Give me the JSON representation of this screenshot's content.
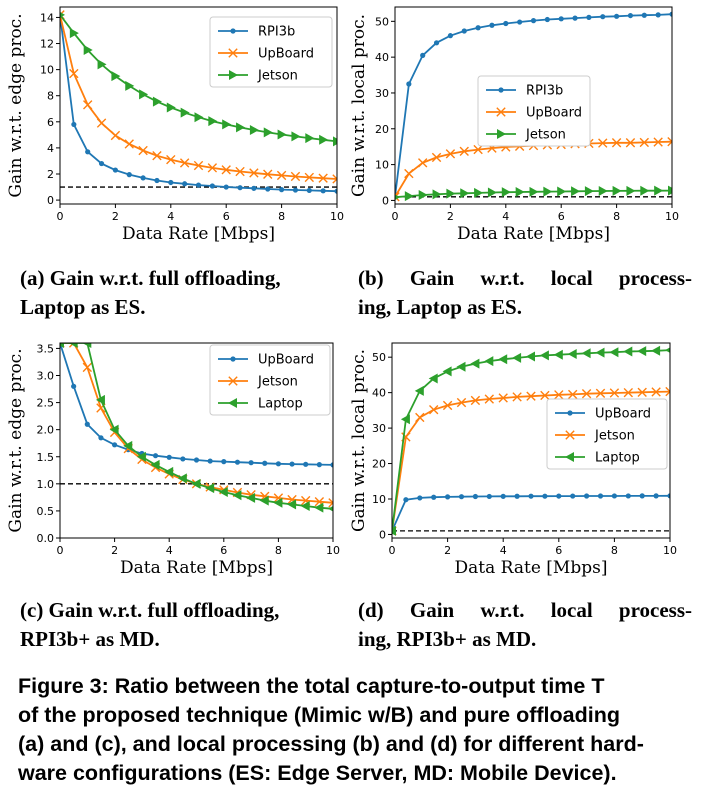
{
  "chart_data": [
    {
      "panel": "a",
      "type": "line",
      "xlabel": "Data Rate [Mbps]",
      "ylabel": "Gain w.r.t. edge proc.",
      "xlim": [
        0,
        10
      ],
      "ylim": [
        -0.3,
        14.8
      ],
      "xticks": [
        0,
        2,
        4,
        6,
        8,
        10
      ],
      "yticks": [
        0,
        2,
        4,
        6,
        8,
        10,
        12,
        14
      ],
      "reference_line": 1,
      "grid": false,
      "legend_position": "top-right",
      "x": [
        0,
        0.5,
        1,
        1.5,
        2,
        2.5,
        3,
        3.5,
        4,
        4.5,
        5,
        5.5,
        6,
        6.5,
        7,
        7.5,
        8,
        8.5,
        9,
        9.5,
        10
      ],
      "series": [
        {
          "name": "RPI3b",
          "color": "#1f77b4",
          "marker": "dot",
          "values": [
            14.2,
            5.8,
            3.7,
            2.8,
            2.3,
            1.95,
            1.7,
            1.5,
            1.35,
            1.25,
            1.15,
            1.08,
            1.0,
            0.95,
            0.9,
            0.85,
            0.8,
            0.77,
            0.74,
            0.71,
            0.68
          ]
        },
        {
          "name": "UpBoard",
          "color": "#ff7f0e",
          "marker": "x",
          "values": [
            14.2,
            9.7,
            7.3,
            5.9,
            4.95,
            4.3,
            3.8,
            3.4,
            3.1,
            2.85,
            2.65,
            2.47,
            2.32,
            2.19,
            2.08,
            1.98,
            1.89,
            1.81,
            1.74,
            1.68,
            1.62
          ]
        },
        {
          "name": "Jetson",
          "color": "#2ca02c",
          "marker": "triangle-right",
          "values": [
            14.2,
            12.8,
            11.5,
            10.4,
            9.5,
            8.75,
            8.1,
            7.55,
            7.1,
            6.7,
            6.35,
            6.05,
            5.8,
            5.57,
            5.37,
            5.19,
            5.03,
            4.88,
            4.75,
            4.62,
            4.5
          ]
        }
      ]
    },
    {
      "panel": "b",
      "type": "line",
      "xlabel": "Data Rate [Mbps]",
      "ylabel": "Gain w.r.t. local proc.",
      "xlim": [
        0,
        10
      ],
      "ylim": [
        -1,
        54
      ],
      "xticks": [
        0,
        2,
        4,
        6,
        8,
        10
      ],
      "yticks": [
        0,
        10,
        20,
        30,
        40,
        50
      ],
      "reference_line": 1,
      "grid": false,
      "legend_position": "center-right",
      "x": [
        0,
        0.5,
        1,
        1.5,
        2,
        2.5,
        3,
        3.5,
        4,
        4.5,
        5,
        5.5,
        6,
        6.5,
        7,
        7.5,
        8,
        8.5,
        9,
        9.5,
        10
      ],
      "series": [
        {
          "name": "RPI3b",
          "color": "#1f77b4",
          "marker": "dot",
          "values": [
            1,
            32.5,
            40.5,
            44.0,
            46.0,
            47.3,
            48.2,
            48.9,
            49.4,
            49.8,
            50.2,
            50.5,
            50.7,
            50.9,
            51.1,
            51.3,
            51.4,
            51.6,
            51.7,
            51.8,
            52.0
          ]
        },
        {
          "name": "UpBoard",
          "color": "#ff7f0e",
          "marker": "x",
          "values": [
            1,
            7.5,
            10.5,
            12.0,
            13.0,
            13.7,
            14.2,
            14.6,
            14.9,
            15.1,
            15.3,
            15.5,
            15.6,
            15.8,
            15.9,
            16.0,
            16.1,
            16.1,
            16.2,
            16.3,
            16.4
          ]
        },
        {
          "name": "Jetson",
          "color": "#2ca02c",
          "marker": "triangle-right",
          "values": [
            0.9,
            1.2,
            1.5,
            1.7,
            1.9,
            2.0,
            2.1,
            2.2,
            2.3,
            2.35,
            2.4,
            2.45,
            2.5,
            2.55,
            2.6,
            2.62,
            2.65,
            2.68,
            2.7,
            2.72,
            2.75
          ]
        }
      ]
    },
    {
      "panel": "c",
      "type": "line",
      "xlabel": "Data Rate [Mbps]",
      "ylabel": "Gain w.r.t. edge proc.",
      "xlim": [
        0,
        10
      ],
      "ylim": [
        0,
        3.6
      ],
      "xticks": [
        0,
        2,
        4,
        6,
        8,
        10
      ],
      "yticks": [
        0.0,
        0.5,
        1.0,
        1.5,
        2.0,
        2.5,
        3.0,
        3.5
      ],
      "ytick_labels": [
        "0.0",
        "0.5",
        "1.0",
        "1.5",
        "2.0",
        "2.5",
        "3.0",
        "3.5"
      ],
      "reference_line": 1,
      "grid": false,
      "legend_position": "top-right",
      "x": [
        0,
        0.5,
        1,
        1.5,
        2,
        2.5,
        3,
        3.5,
        4,
        4.5,
        5,
        5.5,
        6,
        6.5,
        7,
        7.5,
        8,
        8.5,
        9,
        9.5,
        10
      ],
      "series": [
        {
          "name": "UpBoard",
          "color": "#1f77b4",
          "marker": "dot",
          "values": [
            3.6,
            2.8,
            2.1,
            1.85,
            1.72,
            1.63,
            1.56,
            1.52,
            1.49,
            1.46,
            1.44,
            1.42,
            1.41,
            1.4,
            1.39,
            1.38,
            1.37,
            1.365,
            1.36,
            1.355,
            1.35
          ]
        },
        {
          "name": "Jetson",
          "color": "#ff7f0e",
          "marker": "x",
          "values": [
            3.6,
            3.6,
            3.15,
            2.4,
            1.95,
            1.65,
            1.45,
            1.3,
            1.18,
            1.08,
            1.0,
            0.94,
            0.89,
            0.84,
            0.8,
            0.77,
            0.74,
            0.71,
            0.69,
            0.67,
            0.65
          ]
        },
        {
          "name": "Laptop",
          "color": "#2ca02c",
          "marker": "triangle-left",
          "values": [
            3.6,
            3.6,
            3.6,
            2.55,
            2.0,
            1.7,
            1.5,
            1.35,
            1.22,
            1.1,
            1.0,
            0.92,
            0.85,
            0.79,
            0.74,
            0.69,
            0.65,
            0.62,
            0.59,
            0.56,
            0.54
          ]
        }
      ]
    },
    {
      "panel": "d",
      "type": "line",
      "xlabel": "Data Rate [Mbps]",
      "ylabel": "Gain w.r.t. local proc.",
      "xlim": [
        0,
        10
      ],
      "ylim": [
        -1,
        54
      ],
      "xticks": [
        0,
        2,
        4,
        6,
        8,
        10
      ],
      "yticks": [
        0,
        10,
        20,
        30,
        40,
        50
      ],
      "reference_line": 1,
      "grid": false,
      "legend_position": "center-right",
      "x": [
        0,
        0.5,
        1,
        1.5,
        2,
        2.5,
        3,
        3.5,
        4,
        4.5,
        5,
        5.5,
        6,
        6.5,
        7,
        7.5,
        8,
        8.5,
        9,
        9.5,
        10
      ],
      "series": [
        {
          "name": "UpBoard",
          "color": "#1f77b4",
          "marker": "dot",
          "values": [
            1,
            9.8,
            10.3,
            10.5,
            10.6,
            10.65,
            10.7,
            10.72,
            10.75,
            10.77,
            10.8,
            10.8,
            10.82,
            10.83,
            10.85,
            10.85,
            10.86,
            10.87,
            10.88,
            10.88,
            10.9
          ]
        },
        {
          "name": "Jetson",
          "color": "#ff7f0e",
          "marker": "x",
          "values": [
            1,
            27.5,
            33.0,
            35.2,
            36.4,
            37.2,
            37.8,
            38.2,
            38.5,
            38.8,
            39.0,
            39.2,
            39.4,
            39.5,
            39.7,
            39.8,
            39.9,
            40.0,
            40.1,
            40.2,
            40.3
          ]
        },
        {
          "name": "Laptop",
          "color": "#2ca02c",
          "marker": "triangle-left",
          "values": [
            1,
            32.5,
            40.5,
            44.0,
            46.0,
            47.3,
            48.2,
            48.9,
            49.4,
            49.8,
            50.2,
            50.5,
            50.7,
            50.9,
            51.1,
            51.3,
            51.4,
            51.6,
            51.7,
            51.8,
            52.0
          ]
        }
      ]
    }
  ],
  "subcaptions": {
    "a": [
      "(a) Gain w.r.t. full offloading,",
      "Laptop as ES."
    ],
    "b": [
      "(b)  Gain  w.r.t.  local  process-",
      "ing, Laptop as ES."
    ],
    "c": [
      "(c) Gain w.r.t. full offloading,",
      "RPI3b+ as MD."
    ],
    "d": [
      "(d)  Gain  w.r.t.  local  process-",
      "ing, RPI3b+ as MD."
    ]
  },
  "figure_caption": {
    "lines": [
      "Figure 3: Ratio between the total capture-to-output time T",
      "of the proposed technique (Mimic w/B) and pure offloading",
      "(a) and (c), and local processing (b) and (d) for different hard-",
      "ware configurations (ES: Edge Server, MD: Mobile Device)."
    ]
  }
}
